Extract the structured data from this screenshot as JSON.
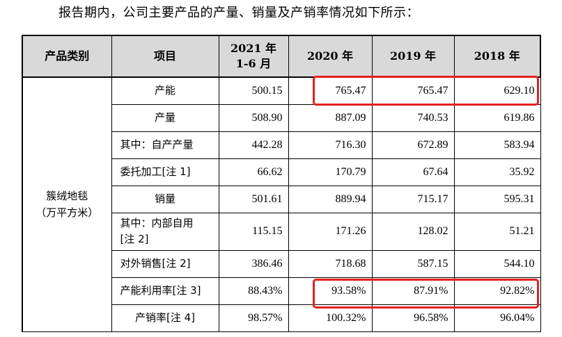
{
  "intro_text": "报告期内，公司主要产品的产量、销量及产销率情况如下所示：",
  "table": {
    "headers": {
      "category": "产品类别",
      "item": "项目",
      "period_2021_line1": "2021 年",
      "period_2021_line2": "1-6 月",
      "year_2020": "2020 年",
      "year_2019": "2019 年",
      "year_2018": "2018 年"
    },
    "category": {
      "line1": "簇绒地毯",
      "line2": "（万平方米）"
    },
    "rows": [
      {
        "item": "产能",
        "v2021h1": "500.15",
        "v2020": "765.47",
        "v2019": "765.47",
        "v2018": "629.10"
      },
      {
        "item": "产量",
        "v2021h1": "508.90",
        "v2020": "887.09",
        "v2019": "740.53",
        "v2018": "619.86"
      },
      {
        "item": "其中：自产产量",
        "v2021h1": "442.28",
        "v2020": "716.30",
        "v2019": "672.89",
        "v2018": "583.94"
      },
      {
        "item": "委托加工[注 1]",
        "v2021h1": "66.62",
        "v2020": "170.79",
        "v2019": "67.64",
        "v2018": "35.92"
      },
      {
        "item": "销量",
        "v2021h1": "501.61",
        "v2020": "889.94",
        "v2019": "715.17",
        "v2018": "595.31"
      },
      {
        "item_line1": "其中：内部自用",
        "item_line2": "[注 2]",
        "v2021h1": "115.15",
        "v2020": "171.26",
        "v2019": "128.02",
        "v2018": "51.21"
      },
      {
        "item": "对外销售[注 2]",
        "v2021h1": "386.46",
        "v2020": "718.68",
        "v2019": "587.15",
        "v2018": "544.10"
      },
      {
        "item": "产能利用率[注 3]",
        "v2021h1": "88.43%",
        "v2020": "93.58%",
        "v2019": "87.91%",
        "v2018": "92.82%"
      },
      {
        "item": "产销率[注 4]",
        "v2021h1": "98.57%",
        "v2020": "100.32%",
        "v2019": "96.58%",
        "v2018": "96.04%"
      }
    ]
  },
  "highlight_color": "#e3211c"
}
